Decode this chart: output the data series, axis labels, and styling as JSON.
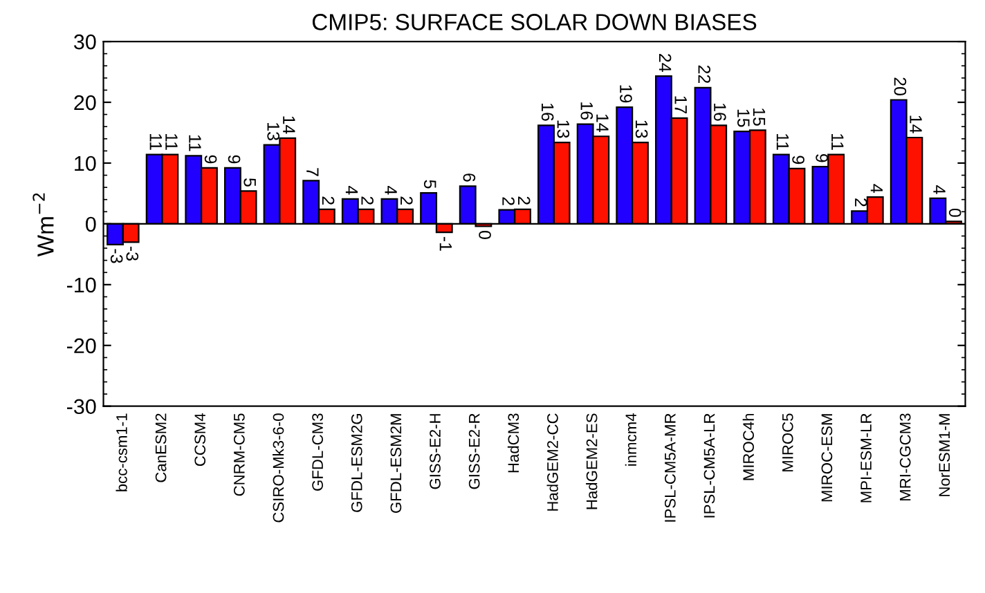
{
  "chart_data": {
    "type": "bar",
    "title": "CMIP5: SURFACE SOLAR DOWN BIASES",
    "ylabel": "Wm$^{−2}$",
    "categories": [
      "bcc-csm1-1",
      "CanESM2",
      "CCSM4",
      "CNRM-CM5",
      "CSIRO-Mk3-6-0",
      "GFDL-CM3",
      "GFDL-ESM2G",
      "GFDL-ESM2M",
      "GISS-E2-H",
      "GISS-E2-R",
      "HadCM3",
      "HadGEM2-CC",
      "HadGEM2-ES",
      "inmcm4",
      "IPSL-CM5A-MR",
      "IPSL-CM5A-LR",
      "MIROC4h",
      "MIROC5",
      "MIROC-ESM",
      "MPI-ESM-LR",
      "MRI-CGCM3",
      "NorESM1-M"
    ],
    "series": [
      {
        "color": "#2200ff",
        "values": [
          -3.4,
          11.4,
          11.2,
          9.2,
          13.0,
          7.1,
          4.1,
          4.1,
          5.1,
          6.2,
          2.3,
          16.2,
          16.4,
          19.2,
          24.3,
          22.4,
          15.2,
          11.4,
          9.4,
          2.1,
          20.4,
          4.2
        ],
        "value_labels": [
          "-3",
          "11",
          "11",
          "9",
          "13",
          "7",
          "4",
          "4",
          "5",
          "6",
          "2",
          "16",
          "16",
          "19",
          "24",
          "22",
          "15",
          "11",
          "9",
          "2",
          "20",
          "4"
        ]
      },
      {
        "color": "#ff1100",
        "values": [
          -3.0,
          11.4,
          9.2,
          5.4,
          14.1,
          2.4,
          2.4,
          2.4,
          -1.4,
          -0.4,
          2.4,
          13.4,
          14.4,
          13.4,
          17.4,
          16.2,
          15.4,
          9.1,
          11.4,
          4.4,
          14.2,
          0.4
        ],
        "value_labels": [
          "-3",
          "11",
          "9",
          "5",
          "14",
          "2",
          "2",
          "2",
          "-1",
          "0",
          "2",
          "13",
          "14",
          "13",
          "17",
          "16",
          "15",
          "9",
          "11",
          "4",
          "14",
          "0"
        ]
      }
    ],
    "ylim": [
      -30,
      30
    ],
    "yticks": [
      -30,
      -20,
      -10,
      0,
      10,
      20,
      30
    ],
    "grid": false,
    "ref_lines": [
      {
        "axis": "y",
        "value": 0,
        "color": "#000000"
      }
    ],
    "legend": false
  }
}
